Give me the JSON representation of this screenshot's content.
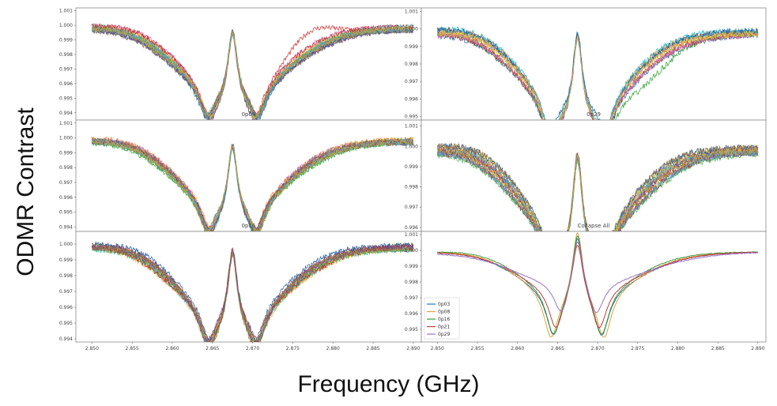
{
  "figure": {
    "ylabel": "ODMR Contrast",
    "xlabel": "Frequency (GHz)"
  },
  "chart_data": [
    {
      "type": "line",
      "title": "0p08",
      "position": "top-left",
      "ylim": [
        0.9935,
        1.0012
      ],
      "xlim": [
        2.848,
        2.891
      ],
      "yticks": [
        "0.994",
        "0.995",
        "0.996",
        "0.997",
        "0.998",
        "0.999",
        "1.000",
        "1.001"
      ],
      "xticks": [],
      "dips": [
        2.8645,
        2.8705
      ],
      "center_peak": 2.8675,
      "series_count": 18
    },
    {
      "type": "line",
      "title": "0p29",
      "position": "top-right",
      "ylim": [
        0.9948,
        1.0012
      ],
      "xlim": [
        2.848,
        2.891
      ],
      "yticks": [
        "0.995",
        "0.996",
        "0.997",
        "0.998",
        "0.999",
        "1.000",
        "1.001"
      ],
      "xticks": [],
      "dips": [
        2.864,
        2.871
      ],
      "center_peak": 2.8675,
      "series_count": 12
    },
    {
      "type": "line",
      "title": "0p16",
      "position": "middle-left",
      "ylim": [
        0.9937,
        1.0012
      ],
      "xlim": [
        2.848,
        2.891
      ],
      "yticks": [
        "0.994",
        "0.995",
        "0.996",
        "0.997",
        "0.998",
        "0.999",
        "1.000",
        "1.001"
      ],
      "xticks": [],
      "dips": [
        2.8645,
        2.8705
      ],
      "center_peak": 2.8675,
      "series_count": 18
    },
    {
      "type": "line",
      "title": "Collapse All",
      "position": "middle-right",
      "ylim": [
        0.9958,
        1.0013
      ],
      "xlim": [
        2.848,
        2.891
      ],
      "yticks": [
        "0.996",
        "0.997",
        "0.998",
        "0.999",
        "1.000",
        "1.001"
      ],
      "xticks": [],
      "dips": [
        2.8645,
        2.8705
      ],
      "center_peak": 2.8675,
      "series_count": 18
    },
    {
      "type": "line",
      "title": "",
      "position": "bottom-left",
      "ylim": [
        0.9938,
        1.0008
      ],
      "xlim": [
        2.848,
        2.891
      ],
      "yticks": [
        "0.994",
        "0.995",
        "0.996",
        "0.997",
        "0.998",
        "0.999",
        "1.000"
      ],
      "xticks": [
        "2.850",
        "2.855",
        "2.860",
        "2.865",
        "2.870",
        "2.875",
        "2.880",
        "2.885",
        "2.890"
      ],
      "dips": [
        2.8645,
        2.8705
      ],
      "center_peak": 2.8675,
      "series_count": 16
    },
    {
      "type": "line",
      "title": "",
      "position": "bottom-right",
      "ylim": [
        0.9942,
        1.0012
      ],
      "xlim": [
        2.848,
        2.891
      ],
      "yticks": [
        "0.995",
        "0.996",
        "0.997",
        "0.998",
        "0.999",
        "1.000",
        "1.001"
      ],
      "xticks": [
        "2.850",
        "2.855",
        "2.860",
        "2.865",
        "2.870",
        "2.875",
        "2.880",
        "2.885",
        "2.890"
      ],
      "legend": {
        "placement": "lower-left",
        "entries": [
          "0p03",
          "0p08",
          "0p16",
          "0p21",
          "0p29"
        ]
      },
      "series": [
        {
          "name": "0p03",
          "color": "#2a73b0",
          "dips": [
            2.8645,
            2.8705
          ],
          "depth": 0.9948,
          "peak": 1.0004,
          "halfwidth": 0.0072
        },
        {
          "name": "0p08",
          "color": "#e3a13a",
          "dips": [
            2.8642,
            2.8708
          ],
          "depth": 0.9946,
          "peak": 1.0007,
          "halfwidth": 0.0069
        },
        {
          "name": "0p16",
          "color": "#3f9a3f",
          "dips": [
            2.8645,
            2.8705
          ],
          "depth": 0.9948,
          "peak": 1.0006,
          "halfwidth": 0.0066
        },
        {
          "name": "0p21",
          "color": "#c23b3b",
          "dips": [
            2.8648,
            2.8702
          ],
          "depth": 0.9953,
          "peak": 1.0001,
          "halfwidth": 0.0074
        },
        {
          "name": "0p29",
          "color": "#9a72c4",
          "dips": [
            2.8655,
            2.8698
          ],
          "depth": 0.9962,
          "peak": 1.0008,
          "halfwidth": 0.0085
        }
      ]
    }
  ],
  "palette": [
    "#1f77b4",
    "#ff7f0e",
    "#2ca02c",
    "#d62728",
    "#9467bd",
    "#8c564b",
    "#e377c2",
    "#7f7f7f",
    "#bcbd22",
    "#17becf",
    "#1a55a0",
    "#f2b84b",
    "#4fb34f",
    "#b33030",
    "#6e4f99",
    "#a07050",
    "#5fa8c8",
    "#c8a83a"
  ]
}
